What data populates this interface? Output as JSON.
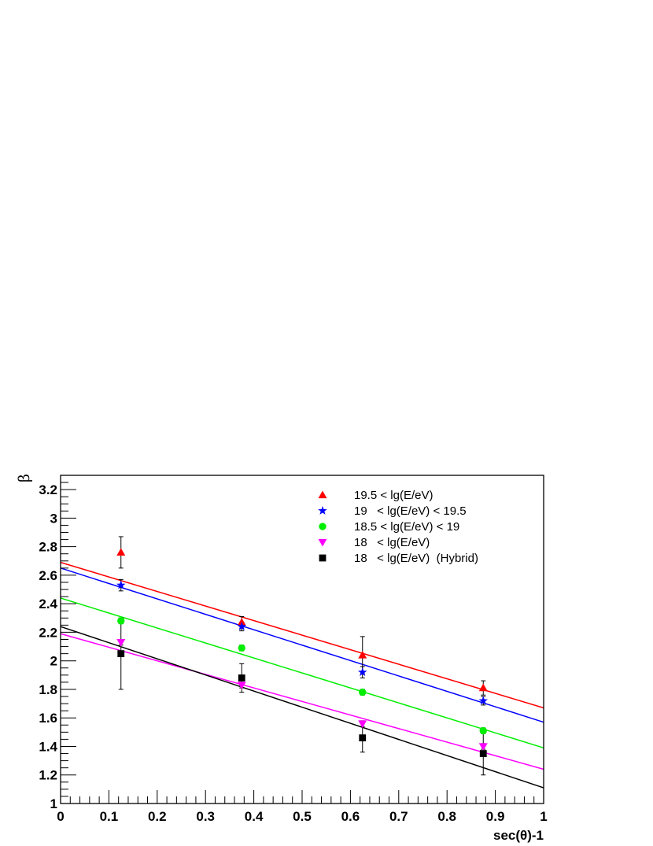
{
  "chart_data": {
    "type": "scatter",
    "title": "",
    "xlabel": "sec(θ)-1",
    "ylabel": "β",
    "xlim": [
      0,
      1
    ],
    "ylim": [
      1,
      3.3
    ],
    "x_ticks": [
      "0",
      "0.1",
      "0.2",
      "0.3",
      "0.4",
      "0.5",
      "0.6",
      "0.7",
      "0.8",
      "0.9",
      "1"
    ],
    "y_ticks": [
      "1",
      "1.2",
      "1.4",
      "1.6",
      "1.8",
      "2",
      "2.2",
      "2.4",
      "2.6",
      "2.8",
      "3",
      "3.2"
    ],
    "grid": false,
    "legend_position": "top-right",
    "series": [
      {
        "name": "19.5 < lg(E/eV)",
        "color": "#ff0000",
        "marker": "triangle-up",
        "x": [
          0.125,
          0.375,
          0.625,
          0.875
        ],
        "y": [
          2.76,
          2.27,
          2.04,
          1.81
        ],
        "err": [
          0.11,
          0.04,
          0.13,
          0.05
        ],
        "fit": {
          "x": [
            0,
            1
          ],
          "y": [
            2.69,
            1.67
          ]
        }
      },
      {
        "name": "19   < lg(E/eV) < 19.5",
        "color": "#0000ff",
        "marker": "star",
        "x": [
          0.125,
          0.375,
          0.625,
          0.875
        ],
        "y": [
          2.53,
          2.24,
          1.92,
          1.72
        ],
        "err": [
          0.04,
          0.03,
          0.04,
          0.03
        ],
        "fit": {
          "x": [
            0,
            1
          ],
          "y": [
            2.65,
            1.57
          ]
        }
      },
      {
        "name": "18.5 < lg(E/eV) < 19",
        "color": "#00ee00",
        "marker": "circle",
        "x": [
          0.125,
          0.375,
          0.625,
          0.875
        ],
        "y": [
          2.28,
          2.09,
          1.78,
          1.51
        ],
        "err": [
          0.02,
          0.02,
          0.02,
          0.02
        ],
        "fit": {
          "x": [
            0,
            1
          ],
          "y": [
            2.44,
            1.39
          ]
        }
      },
      {
        "name": "18   < lg(E/eV)",
        "color": "#ff00ff",
        "marker": "triangle-down",
        "x": [
          0.125,
          0.375,
          0.625,
          0.875
        ],
        "y": [
          2.13,
          1.83,
          1.56,
          1.4
        ],
        "err": [
          0.02,
          0.02,
          0.02,
          0.02
        ],
        "fit": {
          "x": [
            0,
            1
          ],
          "y": [
            2.19,
            1.24
          ]
        }
      },
      {
        "name": "18   < lg(E/eV)  (Hybrid)",
        "color": "#000000",
        "marker": "square",
        "x": [
          0.125,
          0.375,
          0.625,
          0.875
        ],
        "y": [
          2.05,
          1.88,
          1.46,
          1.35
        ],
        "err": [
          0.25,
          0.1,
          0.1,
          0.15
        ],
        "fit": {
          "x": [
            0,
            1
          ],
          "y": [
            2.24,
            1.11
          ]
        }
      }
    ]
  }
}
